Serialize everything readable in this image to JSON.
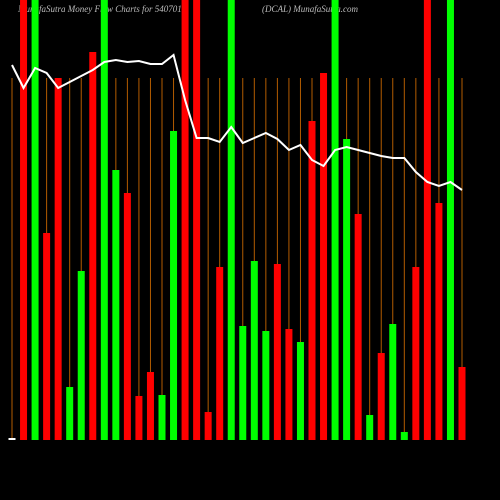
{
  "chart_data": {
    "type": "bar",
    "title": "MunafaSutra  Money Flow  Charts for 540701",
    "subtitle": "(DCAL) MunafaSutra.com",
    "categories": [
      null,
      null,
      null,
      null,
      null,
      null,
      null,
      null,
      null,
      null,
      null,
      null,
      null,
      null,
      null,
      null,
      null,
      null,
      null,
      null,
      null,
      null,
      null,
      null,
      null,
      null,
      null,
      null,
      null,
      null,
      null,
      null,
      null,
      null,
      null,
      null,
      null,
      null,
      null,
      null
    ],
    "ylim": [
      0,
      440
    ],
    "y2lim": [
      0,
      440
    ],
    "series": [
      {
        "values": [
          2,
          440,
          440,
          207,
          362,
          53,
          169,
          388,
          440,
          270,
          247,
          44,
          68,
          45,
          309,
          440,
          440,
          28,
          173,
          440,
          114,
          179,
          109,
          176,
          111,
          98,
          319,
          367,
          440,
          301,
          226,
          25,
          87,
          116,
          8,
          173,
          440,
          237,
          440,
          73
        ],
        "colors": [
          "#ffffff",
          "#ff0000",
          "#00ff00",
          "#ff0000",
          "#ff0000",
          "#00ff00",
          "#00ff00",
          "#ff0000",
          "#00ff00",
          "#00ff00",
          "#ff0000",
          "#ff0000",
          "#ff0000",
          "#00ff00",
          "#00ff00",
          "#ff0000",
          "#ff0000",
          "#ff0000",
          "#ff0000",
          "#00ff00",
          "#00ff00",
          "#00ff00",
          "#00ff00",
          "#ff0000",
          "#ff0000",
          "#00ff00",
          "#ff0000",
          "#ff0000",
          "#00ff00",
          "#00ff00",
          "#ff0000",
          "#00ff00",
          "#ff0000",
          "#00ff00",
          "#00ff00",
          "#ff0000",
          "#ff0000",
          "#ff0000",
          "#00ff00",
          "#ff0000"
        ]
      },
      {
        "type": "line",
        "axis": "y2",
        "color": "#ffffff",
        "values": [
          375,
          352,
          372,
          367,
          352,
          358,
          364,
          370,
          378,
          380,
          378,
          379,
          376,
          376,
          385,
          340,
          302,
          302,
          298,
          313,
          297,
          302,
          307,
          301,
          290,
          295,
          280,
          274,
          290,
          293,
          290,
          287,
          284,
          282,
          282,
          268,
          258,
          254,
          258,
          250
        ]
      }
    ],
    "grid_color": "#b35c00"
  }
}
